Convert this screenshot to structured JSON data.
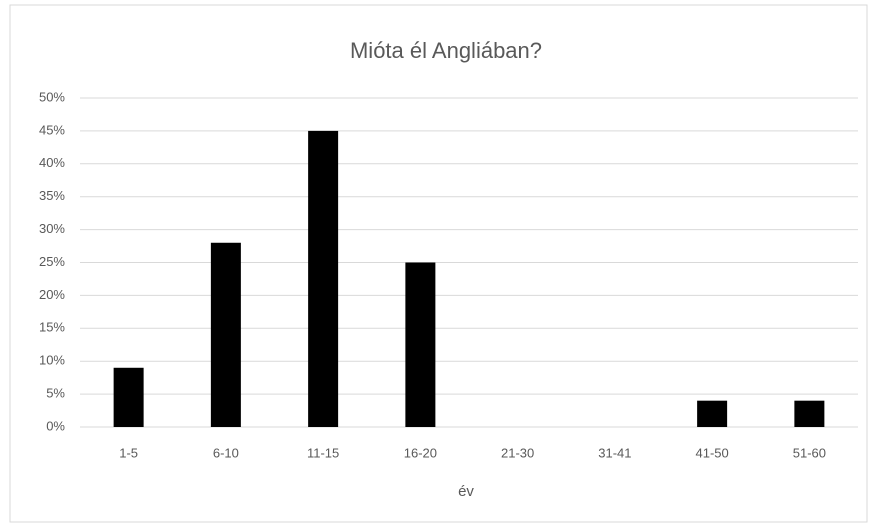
{
  "chart_data": {
    "type": "bar",
    "title": "Mióta él Angliában?",
    "xlabel": "év",
    "categories": [
      "1-5",
      "6-10",
      "11-15",
      "16-20",
      "21-30",
      "31-41",
      "41-50",
      "51-60"
    ],
    "values": [
      9,
      28,
      45,
      25,
      0,
      0,
      4,
      4
    ],
    "color": "#000000",
    "ylim": [
      0,
      50
    ],
    "yticks": [
      {
        "value": 0,
        "label": "0%"
      },
      {
        "value": 5,
        "label": "5%"
      },
      {
        "value": 10,
        "label": "10%"
      },
      {
        "value": 15,
        "label": "15%"
      },
      {
        "value": 20,
        "label": "20%"
      },
      {
        "value": 25,
        "label": "25%"
      },
      {
        "value": 30,
        "label": "30%"
      },
      {
        "value": 35,
        "label": "35%"
      },
      {
        "value": 40,
        "label": "40%"
      },
      {
        "value": 45,
        "label": "45%"
      },
      {
        "value": 50,
        "label": "50%"
      }
    ],
    "grid": true
  }
}
